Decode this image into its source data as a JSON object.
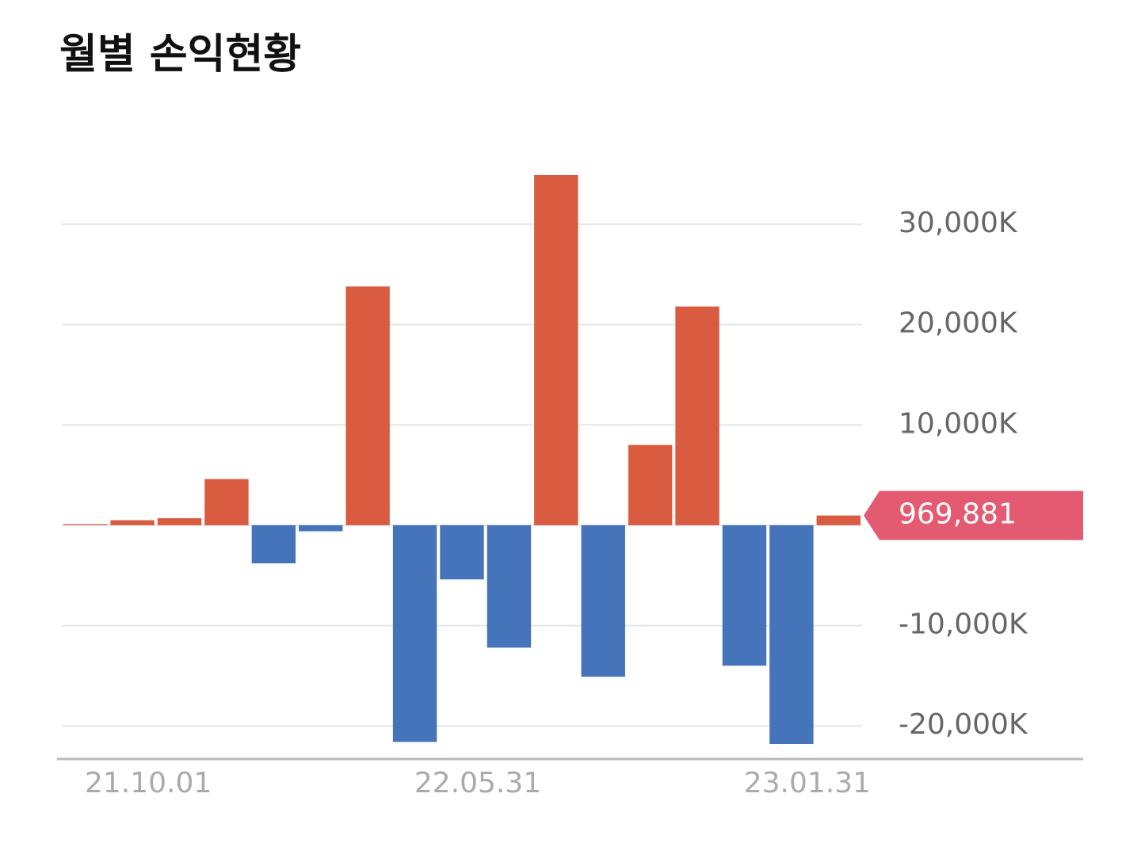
{
  "chart_data": {
    "type": "bar",
    "title": "월별 손익현황",
    "categories": [
      null,
      "21.10.01",
      null,
      null,
      null,
      null,
      null,
      null,
      "22.05.31",
      null,
      null,
      null,
      null,
      null,
      null,
      "23.01.31",
      null
    ],
    "values": [
      100000,
      500000,
      700000,
      4600000,
      -3800000,
      -600000,
      23800000,
      -21600000,
      -5400000,
      -12200000,
      34900000,
      -15100000,
      8000000,
      21800000,
      -14000000,
      -21800000,
      969881
    ],
    "value_labels": [
      null,
      null,
      null,
      null,
      null,
      null,
      null,
      null,
      null,
      null,
      null,
      null,
      null,
      null,
      null,
      null,
      "969,881"
    ],
    "positive_color": "#d95b40",
    "negative_color": "#4674bb",
    "label_color": "#e45a70",
    "ylim": [
      -23300000,
      36000000
    ],
    "yticks": [
      {
        "value": 30000000,
        "label": "30,000K"
      },
      {
        "value": 20000000,
        "label": "20,000K"
      },
      {
        "value": 10000000,
        "label": "10,000K"
      },
      {
        "value": -10000000,
        "label": "-10,000K"
      },
      {
        "value": -20000000,
        "label": "-20,000K"
      }
    ],
    "grid": true
  }
}
